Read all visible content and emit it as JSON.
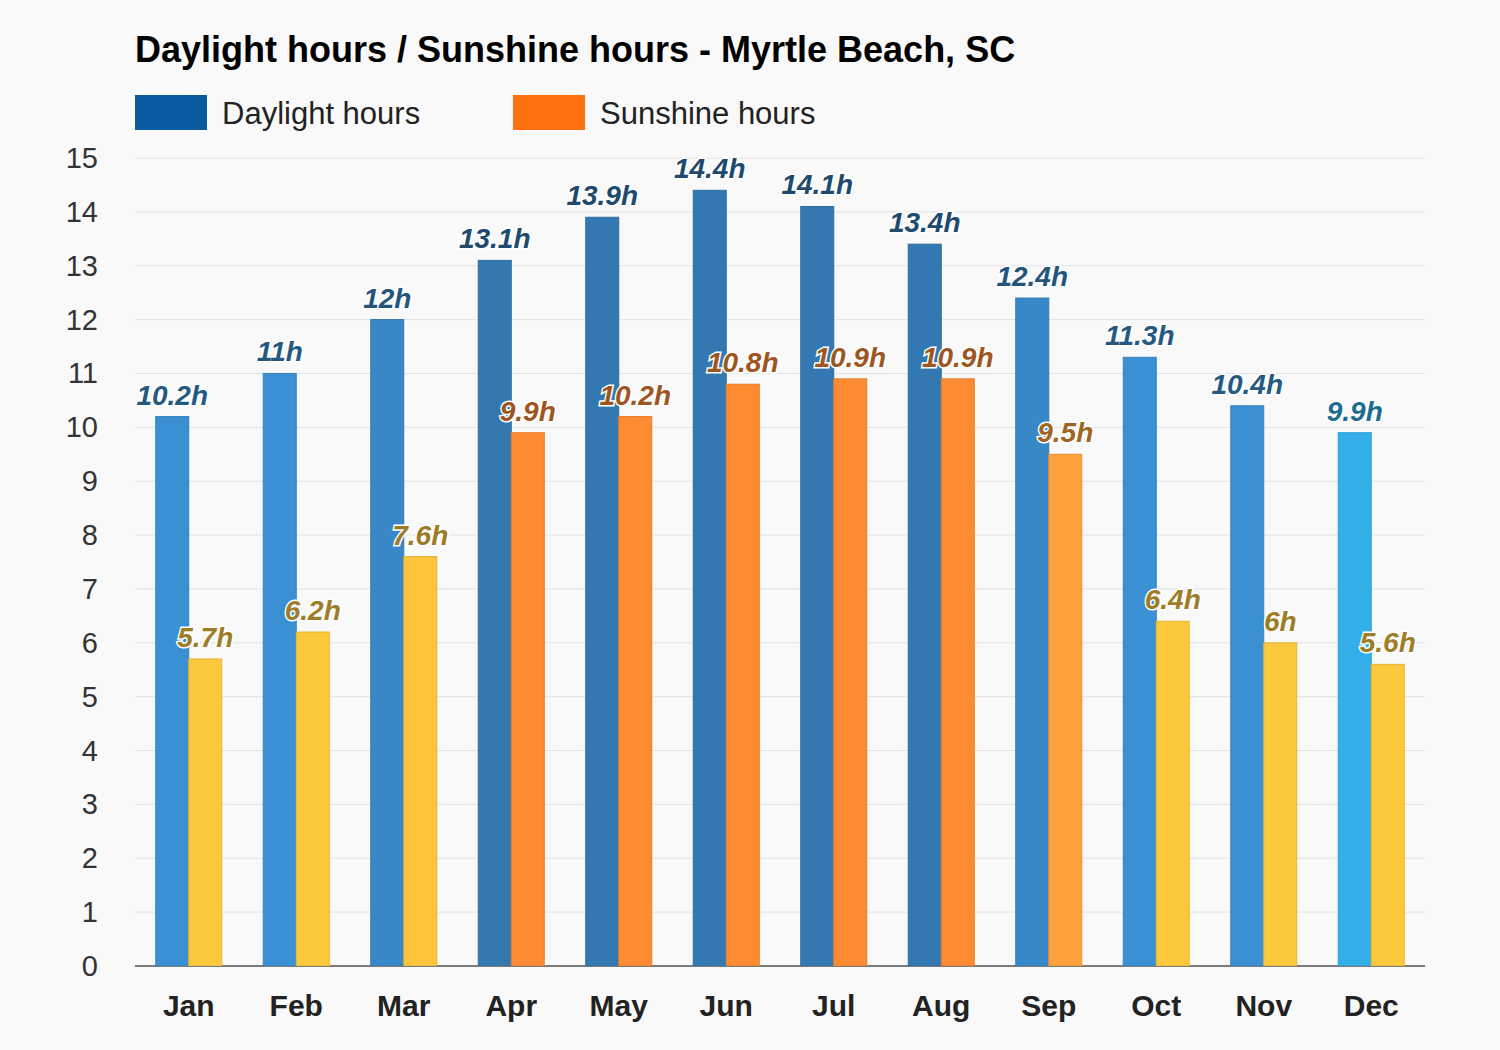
{
  "chart_data": {
    "type": "bar",
    "title": "Daylight hours / Sunshine hours - Myrtle Beach, SC",
    "categories": [
      "Jan",
      "Feb",
      "Mar",
      "Apr",
      "May",
      "Jun",
      "Jul",
      "Aug",
      "Sep",
      "Oct",
      "Nov",
      "Dec"
    ],
    "series": [
      {
        "name": "Daylight hours",
        "color": "#0a5aa0",
        "colors": [
          "#3a90d2",
          "#3a90d2",
          "#3888c8",
          "#3378b0",
          "#3378b0",
          "#3378b0",
          "#3378b0",
          "#3378b0",
          "#3888c8",
          "#3a90d2",
          "#3a90d2",
          "#33aee8"
        ],
        "values": [
          10.2,
          11,
          12,
          13.1,
          13.9,
          14.4,
          14.1,
          13.4,
          12.4,
          11.3,
          10.4,
          9.9
        ],
        "value_labels": [
          "10.2h",
          "11h",
          "12h",
          "13.1h",
          "13.9h",
          "14.4h",
          "14.1h",
          "13.4h",
          "12.4h",
          "11.3h",
          "10.4h",
          "9.9h"
        ]
      },
      {
        "name": "Sunshine hours",
        "color": "#ff7010",
        "colors": [
          "#fdc93c",
          "#fdc93c",
          "#fdc43c",
          "#fe8a32",
          "#fe8a32",
          "#fe8a32",
          "#fe8a32",
          "#fe8a32",
          "#fea13a",
          "#fdc93c",
          "#fdc93c",
          "#fdc93c"
        ],
        "values": [
          5.7,
          6.2,
          7.6,
          9.9,
          10.2,
          10.8,
          10.9,
          10.9,
          9.5,
          6.4,
          6,
          5.6
        ],
        "value_labels": [
          "5.7h",
          "6.2h",
          "7.6h",
          "9.9h",
          "10.2h",
          "10.8h",
          "10.9h",
          "10.9h",
          "9.5h",
          "6.4h",
          "6h",
          "5.6h"
        ]
      }
    ],
    "ylim": [
      0,
      15
    ],
    "yticks": [
      0,
      1,
      2,
      3,
      4,
      5,
      6,
      7,
      8,
      9,
      10,
      11,
      12,
      13,
      14,
      15
    ],
    "grid": true,
    "legend": "top",
    "data_labels": true
  }
}
